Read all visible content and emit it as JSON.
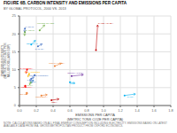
{
  "chart_data": {
    "type": "arrow",
    "title": "FIGURE 6B. CARBON INTENSITY AND EMISSIONS PER CAPITA",
    "subtitle": "BY GLOBAL PROTOCOL, 2000 VS. 2013",
    "xlabel": "EMISSIONS PER CAPITA\n(METRIC TONS CO2E PER CAPITA)",
    "ylabel": "EMISSIONS INTENSITY\n(METRIC TONS CO2E PER\nMILLION DOLLARS GDP)",
    "footnote": "NOTE: CALCULATIONS BASED ON ALL FINAL ENERGY CONSUMPTION INCLUDING ELECTRICITY. EMISSIONS BASED ON LATEST AVAILABLE DATA FROM IEA. GROSS METROPOLITAN PRODUCT FROM OXFORD ECONOMICS.",
    "xlim": [
      0,
      1.8
    ],
    "ylim": [
      0,
      25
    ],
    "xticks": [
      {
        "value": 0,
        "label": "0.0"
      },
      0.2,
      0.4,
      0.6,
      0.8,
      {
        "value": 1.0,
        "label": "1.0"
      },
      1.2,
      1.4,
      1.6,
      1.8
    ],
    "yticks": [
      0,
      5,
      10,
      15,
      20,
      25
    ],
    "grid": true,
    "series": [
      {
        "name": "P. JOHN",
        "color": "#4472c4",
        "x": [
          0.065,
          0.06
        ],
        "y": [
          21.5,
          20.5
        ],
        "label_x": 0.068,
        "label_y": 22.0
      },
      {
        "name": "M. JOHN",
        "color": "#70ad47",
        "x": [
          0.065,
          0.06
        ],
        "y": [
          20.5,
          19.5
        ],
        "label_x": 0.068,
        "label_y": 21.0
      },
      {
        "name": "UNITED STATES",
        "color": "#70ad47",
        "x": [
          0.24,
          0.3
        ],
        "y": [
          21.0,
          22.5
        ],
        "label_x": 0.21,
        "label_y": 23.0
      },
      {
        "name": "BEST RAIL",
        "color": "#00b0f0",
        "x": [
          0.14,
          0.19
        ],
        "y": [
          17.0,
          18.2
        ],
        "label_x": 0.085,
        "label_y": 17.2
      },
      {
        "name": "CANADA",
        "color": "#4472c4",
        "x": [
          0.22,
          0.27
        ],
        "y": [
          16.5,
          17.2
        ],
        "label_x": 0.185,
        "label_y": 15.8
      },
      {
        "name": "SAUDI ARABIA",
        "color": "#c00000",
        "x": [
          0.91,
          0.93
        ],
        "y": [
          15.5,
          22.5
        ],
        "label_x": 0.935,
        "label_y": 23.0
      },
      {
        "name": "CALIFORNIA",
        "color": "#ff0000",
        "x": [
          0.09,
          0.078
        ],
        "y": [
          10.0,
          9.0
        ],
        "label_x": 0.005,
        "label_y": 10.3
      },
      {
        "name": "SOUTH KOREA",
        "color": "#ed7d31",
        "x": [
          0.42,
          0.5
        ],
        "y": [
          11.0,
          11.8
        ],
        "label_x": 0.35,
        "label_y": 11.8
      },
      {
        "name": "LOS ANGELES",
        "color": "#ffc000",
        "x": [
          0.115,
          0.1
        ],
        "y": [
          8.8,
          8.0
        ],
        "label_x": 0.06,
        "label_y": 9.2
      },
      {
        "name": "UNITED KINGDOM",
        "color": "#4472c4",
        "x": [
          0.18,
          0.155
        ],
        "y": [
          8.5,
          7.5
        ],
        "label_x": 0.11,
        "label_y": 8.2
      },
      {
        "name": "JAPAN",
        "color": "#4472c4",
        "x": [
          0.14,
          0.125
        ],
        "y": [
          7.5,
          6.8
        ],
        "label_x": 0.09,
        "label_y": 7.0
      },
      {
        "name": "EU-28",
        "color": "#5b9bd5",
        "x": [
          0.16,
          0.145
        ],
        "y": [
          7.0,
          6.3
        ],
        "label_x": 0.12,
        "label_y": 6.5
      },
      {
        "name": "ITALY",
        "color": "#70ad47",
        "x": [
          0.135,
          0.12
        ],
        "y": [
          6.5,
          5.8
        ],
        "label_x": 0.09,
        "label_y": 5.6
      },
      {
        "name": "AUSTRALIA",
        "color": "#ff0000",
        "x": [
          0.068,
          0.072
        ],
        "y": [
          5.5,
          5.0
        ],
        "label_x": 0.005,
        "label_y": 5.0
      },
      {
        "name": "SOUTH AFRICA",
        "color": "#7030a0",
        "x": [
          0.62,
          0.76
        ],
        "y": [
          8.2,
          8.6
        ],
        "label_x": 0.57,
        "label_y": 9.0
      },
      {
        "name": "TL",
        "color": "#00b0f0",
        "x": [
          0.6,
          0.66
        ],
        "y": [
          6.5,
          6.2
        ],
        "label_x": 0.6,
        "label_y": 6.0
      },
      {
        "name": "CHINA",
        "color": "#00b0f0",
        "x": [
          1.25,
          1.38
        ],
        "y": [
          2.8,
          3.2
        ],
        "label_x": 1.28,
        "label_y": 2.3
      },
      {
        "name": "INDIA",
        "color": "#c00000",
        "x": [
          0.38,
          0.47
        ],
        "y": [
          1.5,
          1.8
        ],
        "label_x": 0.38,
        "label_y": 0.8
      },
      {
        "name": "INDONESIA",
        "color": "#ed7d31",
        "x": [
          0.26,
          0.33
        ],
        "y": [
          2.8,
          3.0
        ],
        "label_x": 0.19,
        "label_y": 2.3
      },
      {
        "name": "BRAZIL",
        "color": "#ed7d31",
        "x": [
          0.088,
          0.082
        ],
        "y": [
          3.5,
          3.0
        ],
        "label_x": 0.005,
        "label_y": 3.2
      }
    ]
  }
}
